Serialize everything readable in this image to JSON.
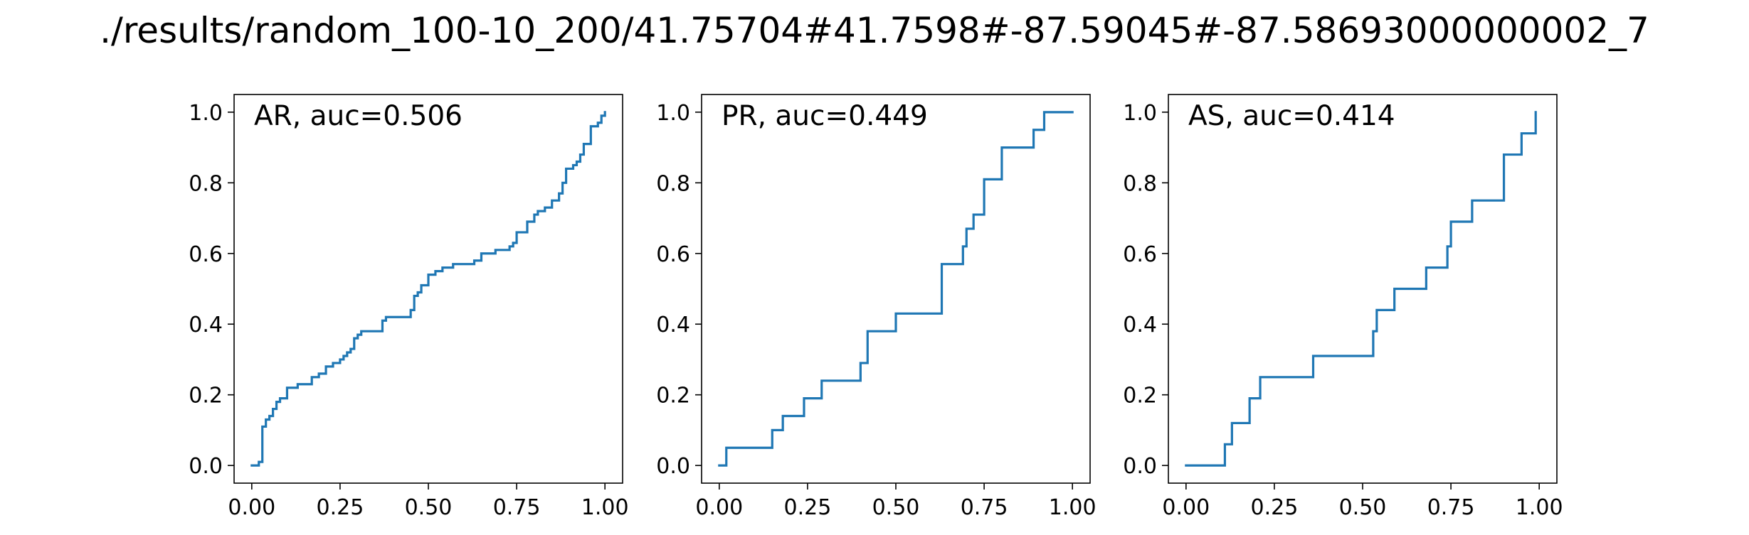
{
  "title": "./results/random_100-10_200/41.75704#41.7598#-87.59045#-87.58693000000002_7",
  "colors": {
    "line": "#1f77b4",
    "axes": "#000000",
    "background": "#ffffff"
  },
  "chart_data": [
    {
      "type": "line",
      "step": true,
      "label": "AR, auc=0.506",
      "xlim": [
        0,
        1
      ],
      "ylim": [
        0,
        1
      ],
      "xticks": [
        "0.00",
        "0.25",
        "0.50",
        "0.75",
        "1.00"
      ],
      "yticks": [
        "0.0",
        "0.2",
        "0.4",
        "0.6",
        "0.8",
        "1.0"
      ],
      "grid": false,
      "series": [
        {
          "x": [
            0.0,
            0.02,
            0.02,
            0.03,
            0.03,
            0.04,
            0.05,
            0.06,
            0.07,
            0.08,
            0.1,
            0.13,
            0.17,
            0.19,
            0.21,
            0.23,
            0.25,
            0.26,
            0.27,
            0.28,
            0.29,
            0.3,
            0.31,
            0.37,
            0.38,
            0.45,
            0.46,
            0.47,
            0.48,
            0.5,
            0.52,
            0.54,
            0.57,
            0.61,
            0.63,
            0.65,
            0.69,
            0.73,
            0.74,
            0.75,
            0.78,
            0.8,
            0.81,
            0.83,
            0.85,
            0.87,
            0.88,
            0.89,
            0.91,
            0.92,
            0.93,
            0.94,
            0.96,
            0.98,
            0.99,
            1.0
          ],
          "y": [
            0.0,
            0.0,
            0.01,
            0.01,
            0.11,
            0.13,
            0.14,
            0.16,
            0.18,
            0.19,
            0.22,
            0.23,
            0.25,
            0.26,
            0.28,
            0.29,
            0.3,
            0.31,
            0.32,
            0.33,
            0.36,
            0.37,
            0.38,
            0.41,
            0.42,
            0.44,
            0.48,
            0.49,
            0.51,
            0.54,
            0.55,
            0.56,
            0.57,
            0.57,
            0.58,
            0.6,
            0.61,
            0.62,
            0.63,
            0.66,
            0.69,
            0.71,
            0.72,
            0.73,
            0.75,
            0.77,
            0.8,
            0.84,
            0.85,
            0.86,
            0.88,
            0.91,
            0.96,
            0.97,
            0.99,
            1.0
          ]
        }
      ]
    },
    {
      "type": "line",
      "step": true,
      "label": "PR, auc=0.449",
      "xlim": [
        0,
        1
      ],
      "ylim": [
        0,
        1
      ],
      "xticks": [
        "0.00",
        "0.25",
        "0.50",
        "0.75",
        "1.00"
      ],
      "yticks": [
        "0.0",
        "0.2",
        "0.4",
        "0.6",
        "0.8",
        "1.0"
      ],
      "grid": false,
      "series": [
        {
          "x": [
            0.0,
            0.02,
            0.15,
            0.18,
            0.24,
            0.29,
            0.4,
            0.42,
            0.5,
            0.63,
            0.63,
            0.69,
            0.7,
            0.72,
            0.75,
            0.8,
            0.89,
            0.92,
            1.0
          ],
          "y": [
            0.0,
            0.05,
            0.1,
            0.14,
            0.19,
            0.24,
            0.29,
            0.38,
            0.43,
            0.52,
            0.57,
            0.62,
            0.67,
            0.71,
            0.81,
            0.9,
            0.95,
            1.0,
            1.0
          ]
        }
      ]
    },
    {
      "type": "line",
      "step": true,
      "label": "AS, auc=0.414",
      "xlim": [
        0,
        1
      ],
      "ylim": [
        0,
        1
      ],
      "xticks": [
        "0.00",
        "0.25",
        "0.50",
        "0.75",
        "1.00"
      ],
      "yticks": [
        "0.0",
        "0.2",
        "0.4",
        "0.6",
        "0.8",
        "1.0"
      ],
      "grid": false,
      "series": [
        {
          "x": [
            0.0,
            0.11,
            0.13,
            0.18,
            0.21,
            0.36,
            0.53,
            0.54,
            0.59,
            0.68,
            0.74,
            0.75,
            0.81,
            0.9,
            0.95,
            0.99
          ],
          "y": [
            0.0,
            0.06,
            0.12,
            0.19,
            0.25,
            0.31,
            0.38,
            0.44,
            0.5,
            0.56,
            0.62,
            0.69,
            0.75,
            0.88,
            0.94,
            1.0
          ]
        }
      ]
    }
  ]
}
